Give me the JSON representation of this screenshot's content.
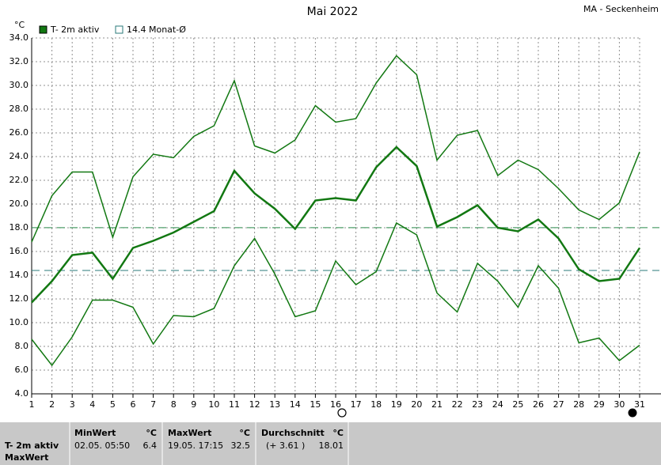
{
  "chart_data": {
    "type": "line",
    "title": "Mai 2022",
    "station": "MA - Seckenheim",
    "unit": "°C",
    "x": [
      1,
      2,
      3,
      4,
      5,
      6,
      7,
      8,
      9,
      10,
      11,
      12,
      13,
      14,
      15,
      16,
      17,
      18,
      19,
      20,
      21,
      22,
      23,
      24,
      25,
      26,
      27,
      28,
      29,
      30,
      31
    ],
    "xlim": [
      1,
      31
    ],
    "xticks": [
      1,
      2,
      3,
      4,
      5,
      6,
      7,
      8,
      9,
      10,
      11,
      12,
      13,
      14,
      15,
      16,
      17,
      18,
      19,
      20,
      21,
      22,
      23,
      24,
      25,
      26,
      27,
      28,
      29,
      30,
      31
    ],
    "ylim": [
      4,
      34
    ],
    "yticks": [
      {
        "value": 4,
        "label": "4.0"
      },
      {
        "value": 6,
        "label": "6.0"
      },
      {
        "value": 8,
        "label": "8.0"
      },
      {
        "value": 10,
        "label": "10.0"
      },
      {
        "value": 12,
        "label": "12.0"
      },
      {
        "value": 14,
        "label": "14.0"
      },
      {
        "value": 16,
        "label": "16.0"
      },
      {
        "value": 18,
        "label": "18.0"
      },
      {
        "value": 20,
        "label": "20.0"
      },
      {
        "value": 22,
        "label": "22.0"
      },
      {
        "value": 24,
        "label": "24.0"
      },
      {
        "value": 26,
        "label": "26.0"
      },
      {
        "value": 28,
        "label": "28.0"
      },
      {
        "value": 30,
        "label": "30.0"
      },
      {
        "value": 32,
        "label": "32.0"
      },
      {
        "value": 34,
        "label": "34.0"
      }
    ],
    "grid": true,
    "series": [
      {
        "name": "T- 2m aktiv",
        "color": "#127812",
        "width": 2.5,
        "values": [
          11.7,
          13.5,
          15.7,
          15.9,
          13.7,
          16.3,
          16.9,
          17.6,
          18.5,
          19.4,
          22.8,
          20.9,
          19.6,
          17.9,
          20.3,
          20.5,
          20.3,
          23.1,
          24.8,
          23.2,
          18.1,
          18.9,
          19.9,
          18.0,
          17.7,
          18.7,
          17.1,
          14.5,
          13.5,
          13.7,
          16.3
        ]
      },
      {
        "color": "#127812",
        "width": 1.5,
        "values": [
          16.8,
          20.7,
          22.7,
          22.7,
          17.2,
          22.3,
          24.2,
          23.9,
          25.7,
          26.6,
          30.4,
          24.9,
          24.3,
          25.4,
          28.3,
          26.9,
          27.2,
          30.2,
          32.5,
          30.9,
          23.7,
          25.8,
          26.2,
          22.4,
          23.7,
          22.9,
          21.3,
          19.5,
          18.7,
          20.1,
          24.4
        ]
      },
      {
        "color": "#127812",
        "width": 1.5,
        "values": [
          8.6,
          6.4,
          8.8,
          11.9,
          11.9,
          11.3,
          8.2,
          10.6,
          10.5,
          11.2,
          14.8,
          17.1,
          14.1,
          10.5,
          11.0,
          15.2,
          13.2,
          14.3,
          18.4,
          17.4,
          12.5,
          10.9,
          15.0,
          13.5,
          11.3,
          14.8,
          12.9,
          8.3,
          8.7,
          6.8,
          8.1
        ]
      }
    ],
    "ref_lines": [
      {
        "value": 18.01,
        "color": "#2a8a4a"
      },
      {
        "value": 14.4,
        "label": "14.4 Monat-Ø",
        "color": "#2a7a7a"
      }
    ]
  },
  "stats": {
    "row_labels": [
      "T- 2m aktiv",
      "MaxWert"
    ],
    "columns": [
      {
        "header": "MinWert",
        "unit": "°C",
        "time": "02.05.  05:50",
        "value": "6.4"
      },
      {
        "header": "MaxWert",
        "unit": "°C",
        "time": "19.05.  17:15",
        "value": "32.5"
      },
      {
        "header": "Durchschnitt",
        "unit": "°C",
        "time": "(+ 3.61 )",
        "value": "18.01"
      }
    ]
  }
}
